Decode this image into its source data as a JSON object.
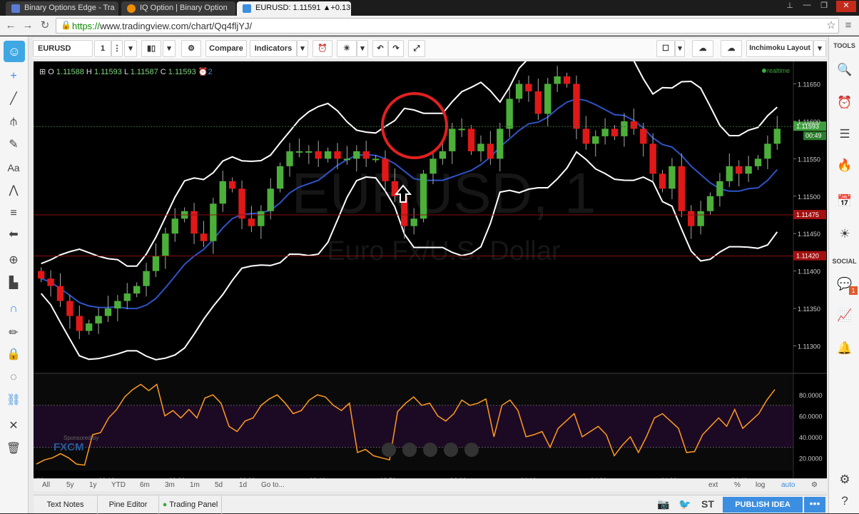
{
  "browser": {
    "tabs": [
      {
        "label": "Binary Options Edge - Tra",
        "color": "#5b7bd5"
      },
      {
        "label": "IQ Option | Binary Option",
        "color": "#f08c00"
      },
      {
        "label": "EURUSD: 1.11591 ▲+0.13",
        "color": "#3c8ee0"
      }
    ],
    "url_scheme": "https://",
    "url_rest": "www.tradingview.com/chart/Qq4fljYJ/"
  },
  "toolbar": {
    "symbol": "EURUSD",
    "interval": "1",
    "compare_label": "Compare",
    "indicators_label": "Indicators",
    "layout_label": "Inchimoku Layout"
  },
  "right_toolbar": {
    "tools_label": "TOOLS",
    "social_label": "SOCIAL",
    "badge_count": "1"
  },
  "legend": {
    "o_label": "O",
    "o": "1.11588",
    "h_label": "H",
    "h": "1.11593",
    "l_label": "L",
    "l": "1.11587",
    "c_label": "C",
    "c": "1.11593",
    "alert_count": "2",
    "realtime_label": "realtime"
  },
  "price_axis": {
    "ticks": [
      "1.11650",
      "1.11600",
      "1.11550",
      "1.11500",
      "1.11450",
      "1.11400",
      "1.11350",
      "1.11300"
    ],
    "current_price": "1.11593",
    "countdown": "00:49",
    "level_1": "1.11475",
    "level_2": "1.11420"
  },
  "watermark": {
    "symbol": "EURUSD, 1",
    "name": "Euro Fx/U.S. Dollar"
  },
  "sponsor": {
    "text": "Sponsored by",
    "brand": "FXCM"
  },
  "rsi_axis": {
    "ticks": [
      "80.0000",
      "60.0000",
      "40.0000",
      "20.0000"
    ]
  },
  "time_axis": {
    "ticks": [
      ":00",
      "03:10",
      "03:20",
      "03:30",
      "03:40",
      "03:50",
      "04:00",
      "04:10",
      "04:20",
      "04:30",
      "04:40"
    ]
  },
  "range_bar": {
    "ranges": [
      "All",
      "5y",
      "1y",
      "YTD",
      "6m",
      "3m",
      "1m",
      "5d",
      "1d",
      "Go to..."
    ],
    "right": [
      "ext",
      "%",
      "log",
      "auto"
    ]
  },
  "footer": {
    "tabs": [
      "Text Notes",
      "Pine Editor",
      "Trading Panel"
    ],
    "st_label": "ST",
    "publish_label": "PUBLISH IDEA",
    "more_label": "•••"
  },
  "chart_data": [
    {
      "type": "candlestick",
      "title": "EURUSD, 1",
      "subtitle": "Euro Fx/U.S. Dollar",
      "ylim": [
        1.1127,
        1.1168
      ],
      "x": [
        ":00",
        "03:10",
        "03:20",
        "03:30",
        "03:40",
        "03:50",
        "04:00",
        "04:10",
        "04:20",
        "04:30",
        "04:40"
      ],
      "close_series": [
        1.1139,
        1.1138,
        1.1136,
        1.1134,
        1.1132,
        1.1133,
        1.1134,
        1.1135,
        1.1136,
        1.1137,
        1.1138,
        1.114,
        1.1142,
        1.1145,
        1.1147,
        1.1148,
        1.1145,
        1.1144,
        1.1149,
        1.1152,
        1.1151,
        1.1147,
        1.1146,
        1.1148,
        1.1151,
        1.1154,
        1.1156,
        1.1156,
        1.1156,
        1.1155,
        1.1156,
        1.1155,
        1.1155,
        1.1156,
        1.1155,
        1.1155,
        1.1152,
        1.115,
        1.1146,
        1.1147,
        1.1153,
        1.1155,
        1.1156,
        1.1159,
        1.1159,
        1.1156,
        1.1157,
        1.1155,
        1.1159,
        1.1163,
        1.1165,
        1.1164,
        1.1161,
        1.1165,
        1.1166,
        1.1165,
        1.1159,
        1.1157,
        1.1158,
        1.1159,
        1.1158,
        1.116,
        1.1159,
        1.1157,
        1.1153,
        1.1151,
        1.1154,
        1.1148,
        1.1146,
        1.1148,
        1.115,
        1.1152,
        1.1154,
        1.1153,
        1.1154,
        1.1155,
        1.1157,
        1.1159
      ],
      "bands": {
        "upper_start": 1.1148,
        "upper_end": 1.116,
        "lower_start": 1.114,
        "lower_end": 1.1148
      },
      "current_price": 1.11593,
      "levels": [
        1.11475,
        1.1142
      ]
    },
    {
      "type": "line",
      "title": "",
      "ylim": [
        10,
        95
      ],
      "y_ticks": [
        80,
        60,
        40,
        20
      ],
      "bands": [
        30,
        70
      ],
      "values": [
        14,
        18,
        20,
        24,
        20,
        14,
        13,
        42,
        44,
        58,
        66,
        78,
        85,
        90,
        84,
        90,
        60,
        65,
        58,
        66,
        58,
        77,
        80,
        72,
        50,
        45,
        55,
        58,
        70,
        76,
        80,
        72,
        62,
        65,
        75,
        80,
        78,
        70,
        65,
        72,
        25,
        28,
        22,
        20,
        18,
        64,
        72,
        78,
        70,
        72,
        60,
        55,
        62,
        75,
        70,
        72,
        76,
        40,
        70,
        75,
        65,
        40,
        42,
        45,
        30,
        48,
        55,
        62,
        40,
        45,
        50,
        42,
        22,
        32,
        40,
        25,
        40,
        58,
        62,
        55,
        48,
        25,
        26,
        42,
        50,
        58,
        50,
        66,
        48,
        55,
        62,
        75,
        85
      ]
    }
  ],
  "colors": {
    "candle_up": "#4caf3a",
    "candle_down": "#e01818",
    "bollinger": "#ffffff",
    "basis": "#2f53c6",
    "rsi": "#ff9a1f",
    "level_line": "#8b1010",
    "accent": "#3c8ee0",
    "highlight_circle": "#e02020"
  }
}
